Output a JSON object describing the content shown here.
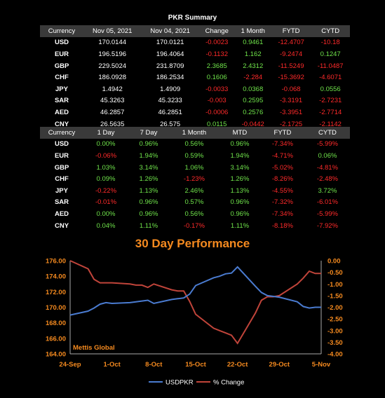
{
  "summary": {
    "title": "PKR Summary",
    "headers": [
      "Currency",
      "Nov 05, 2021",
      "Nov 04, 2021",
      "Change",
      "1 Month",
      "FYTD",
      "CYTD"
    ],
    "rows": [
      [
        "USD",
        "170.0144",
        "170.0121",
        "-0.0023",
        "0.9461",
        "-12.4707",
        "-10.18"
      ],
      [
        "EUR",
        "196.5196",
        "196.4064",
        "-0.1132",
        "1.162",
        "-9.2474",
        "0.1247"
      ],
      [
        "GBP",
        "229.5024",
        "231.8709",
        "2.3685",
        "2.4312",
        "-11.5249",
        "-11.0487"
      ],
      [
        "CHF",
        "186.0928",
        "186.2534",
        "0.1606",
        "-2.284",
        "-15.3692",
        "-4.6071"
      ],
      [
        "JPY",
        "1.4942",
        "1.4909",
        "-0.0033",
        "0.0368",
        "-0.068",
        "0.0556"
      ],
      [
        "SAR",
        "45.3263",
        "45.3233",
        "-0.003",
        "0.2595",
        "-3.3191",
        "-2.7231"
      ],
      [
        "AED",
        "46.2857",
        "46.2851",
        "-0.0006",
        "0.2576",
        "-3.3951",
        "-2.7714"
      ],
      [
        "CNY",
        "26.5635",
        "26.575",
        "0.0115",
        "-0.0442",
        "-2.1725",
        "-2.1142"
      ]
    ]
  },
  "performance": {
    "headers": [
      "Currency",
      "1 Day",
      "7 Day",
      "1 Month",
      "MTD",
      "FYTD",
      "CYTD"
    ],
    "rows": [
      [
        "USD",
        "0.00%",
        "0.96%",
        "0.56%",
        "0.96%",
        "-7.34%",
        "-5.99%"
      ],
      [
        "EUR",
        "-0.06%",
        "1.94%",
        "0.59%",
        "1.94%",
        "-4.71%",
        "0.06%"
      ],
      [
        "GBP",
        "1.03%",
        "3.14%",
        "1.06%",
        "3.14%",
        "-5.02%",
        "-4.81%"
      ],
      [
        "CHF",
        "0.09%",
        "1.26%",
        "-1.23%",
        "1.26%",
        "-8.26%",
        "-2.48%"
      ],
      [
        "JPY",
        "-0.22%",
        "1.13%",
        "2.46%",
        "1.13%",
        "-4.55%",
        "3.72%"
      ],
      [
        "SAR",
        "-0.01%",
        "0.96%",
        "0.57%",
        "0.96%",
        "-7.32%",
        "-6.01%"
      ],
      [
        "AED",
        "0.00%",
        "0.96%",
        "0.56%",
        "0.96%",
        "-7.34%",
        "-5.99%"
      ],
      [
        "CNY",
        "0.04%",
        "1.11%",
        "-0.17%",
        "1.11%",
        "-8.18%",
        "-7.92%"
      ]
    ]
  },
  "colors": {
    "positive": "#6fe34a",
    "negative": "#ff2a2a",
    "usd": "#4a7bd0",
    "pct": "#c0443a",
    "orange": "#f58a1f",
    "header_bg": "#3a3a3a"
  },
  "chart_data": {
    "type": "line",
    "title": "30 Day Performance",
    "watermark": "Mettis Global",
    "x_ticks": [
      "24-Sep",
      "1-Oct",
      "8-Oct",
      "15-Oct",
      "22-Oct",
      "29-Oct",
      "5-Nov"
    ],
    "y_left": {
      "ylim": [
        164,
        176
      ],
      "ticks": [
        "176.00",
        "174.00",
        "172.00",
        "170.00",
        "168.00",
        "166.00",
        "164.00"
      ]
    },
    "y_right": {
      "ylim": [
        -4.0,
        0.0
      ],
      "ticks": [
        "0.00",
        "-0.50",
        "-1.00",
        "-1.50",
        "-2.00",
        "-2.50",
        "-3.00",
        "-3.50",
        "-4.00"
      ]
    },
    "series": [
      {
        "name": "USDPKR",
        "axis": "left",
        "x": [
          0,
          3,
          4,
          5,
          6,
          7,
          10,
          11,
          12,
          13,
          14,
          17,
          18,
          19,
          20,
          21,
          24,
          25,
          26,
          27,
          28,
          31,
          32,
          33,
          34,
          35,
          38,
          39,
          40,
          41,
          42
        ],
        "values": [
          169.0,
          169.5,
          169.9,
          170.4,
          170.6,
          170.5,
          170.6,
          170.7,
          170.8,
          170.9,
          170.5,
          171.0,
          171.1,
          171.2,
          171.7,
          172.8,
          173.8,
          174.0,
          174.3,
          174.4,
          175.2,
          172.7,
          171.9,
          171.5,
          171.4,
          171.3,
          170.7,
          170.1,
          169.9,
          170.0,
          170.0
        ]
      },
      {
        "name": "% Change",
        "axis": "right",
        "x": [
          0,
          3,
          4,
          5,
          6,
          7,
          10,
          11,
          12,
          13,
          14,
          17,
          18,
          19,
          20,
          21,
          24,
          25,
          26,
          27,
          28,
          31,
          32,
          33,
          34,
          35,
          38,
          39,
          40,
          41,
          42
        ],
        "values": [
          0.0,
          -0.35,
          -0.8,
          -0.95,
          -0.95,
          -0.95,
          -1.0,
          -1.05,
          -1.05,
          -1.15,
          -1.0,
          -1.25,
          -1.3,
          -1.3,
          -1.75,
          -2.3,
          -2.9,
          -3.0,
          -3.1,
          -3.2,
          -3.55,
          -2.25,
          -1.7,
          -1.55,
          -1.55,
          -1.5,
          -1.0,
          -0.75,
          -0.45,
          -0.55,
          -0.55
        ]
      }
    ]
  }
}
